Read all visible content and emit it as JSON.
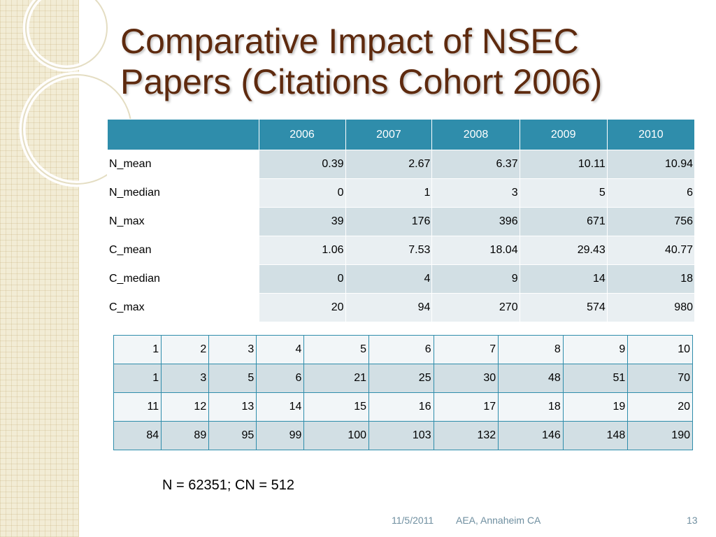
{
  "slide": {
    "title_lines": [
      "Comparative Impact of NSEC",
      "Papers (Citations Cohort 2006)"
    ],
    "note": "N = 62351; CN = 512",
    "footer": {
      "date": "11/5/2011",
      "venue": "AEA, Annaheim CA",
      "page_number": "13"
    }
  },
  "stats_table": {
    "corner": "",
    "years": [
      "2006",
      "2007",
      "2008",
      "2009",
      "2010"
    ],
    "rows": [
      {
        "label": "N_mean",
        "values": [
          "0.39",
          "2.67",
          "6.37",
          "10.11",
          "10.94"
        ]
      },
      {
        "label": "N_median",
        "values": [
          "0",
          "1",
          "3",
          "5",
          "6"
        ]
      },
      {
        "label": "N_max",
        "values": [
          "39",
          "176",
          "396",
          "671",
          "756"
        ]
      },
      {
        "label": "C_mean",
        "values": [
          "1.06",
          "7.53",
          "18.04",
          "29.43",
          "40.77"
        ]
      },
      {
        "label": "C_median",
        "values": [
          "0",
          "4",
          "9",
          "14",
          "18"
        ]
      },
      {
        "label": "C_max",
        "values": [
          "20",
          "94",
          "270",
          "574",
          "980"
        ]
      }
    ]
  },
  "rank_table": {
    "rows": [
      [
        "1",
        "2",
        "3",
        "4",
        "5",
        "6",
        "7",
        "8",
        "9",
        "10"
      ],
      [
        "1",
        "3",
        "5",
        "6",
        "21",
        "25",
        "30",
        "48",
        "51",
        "70"
      ],
      [
        "11",
        "12",
        "13",
        "14",
        "15",
        "16",
        "17",
        "18",
        "19",
        "20"
      ],
      [
        "84",
        "89",
        "95",
        "99",
        "100",
        "103",
        "132",
        "146",
        "148",
        "190"
      ]
    ]
  },
  "colors": {
    "title": "#5e2a0e",
    "header_fill": "#2f8dab",
    "row_dark": "#d2dfe4",
    "row_light": "#e9eff2",
    "side_panel": "#f2ecd5"
  }
}
